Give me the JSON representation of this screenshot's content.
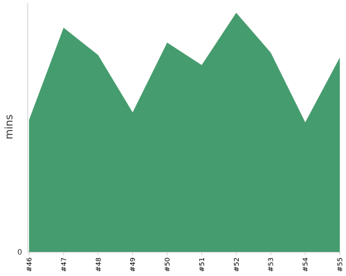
{
  "chart_data": {
    "type": "area",
    "title": "",
    "xlabel": "",
    "ylabel": "mins",
    "categories": [
      "#46",
      "#47",
      "#48",
      "#49",
      "#50",
      "#51",
      "#52",
      "#53",
      "#54",
      "#55"
    ],
    "series": [
      {
        "values": [
          53,
          90,
          79,
          56,
          84,
          75,
          96,
          80,
          52,
          78
        ]
      }
    ],
    "ylim": [
      0,
      100
    ],
    "y_ticks": [
      "0"
    ],
    "grid": false,
    "legend": "none",
    "fill_color": "#459c6e"
  }
}
